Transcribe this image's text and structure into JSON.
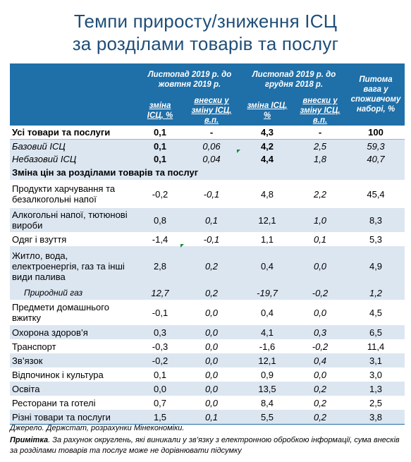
{
  "title": {
    "line1": "Темпи приросту/зниження ІСЦ",
    "line2": "за розділами товарів та послуг"
  },
  "header": {
    "group1": "Листопад 2019 р.  до жовтня 2019 р.",
    "group2": "Листопад 2019 р. до грудня 2018 р.",
    "weight": "Питома вага у споживчому наборі, %",
    "change1": "зміна ІСЦ, %",
    "contrib1": "внески у зміну ІСЦ, в.п.",
    "change2": "зміна ІСЦ, %",
    "contrib2": "внески у зміну ІСЦ, в.п."
  },
  "totals": [
    {
      "label": "Усі товари та послуги",
      "m_change": "0,1",
      "m_contrib": "-",
      "y_change": "4,3",
      "y_contrib": "-",
      "weight": "100"
    },
    {
      "label": "Базовий ІСЦ",
      "m_change": "0,1",
      "m_contrib": "0,06",
      "y_change": "4,2",
      "y_contrib": "2,5",
      "weight": "59,3"
    },
    {
      "label": "Небазовий ІСЦ",
      "m_change": "0,1",
      "m_contrib": "0,04",
      "y_change": "4,4",
      "y_contrib": "1,8",
      "weight": "40,7"
    }
  ],
  "section_title": "Зміна цін за розділами товарів та послуг",
  "rows": [
    {
      "label": "Продукти харчування та безалкогольні напої",
      "m_change": "-0,2",
      "m_contrib": "-0,1",
      "y_change": "4,8",
      "y_contrib": "2,2",
      "weight": "45,4"
    },
    {
      "label": "Алкогольні напої, тютюнові вироби",
      "m_change": "0,8",
      "m_contrib": "0,1",
      "y_change": "12,1",
      "y_contrib": "1,0",
      "weight": "8,3"
    },
    {
      "label": "Одяг і взуття",
      "m_change": "-1,4",
      "m_contrib": "-0,1",
      "y_change": "1,1",
      "y_contrib": "0,1",
      "weight": "5,3"
    },
    {
      "label": "Житло, вода, електроенергія, газ та інші види палива",
      "m_change": "2,8",
      "m_contrib": "0,2",
      "y_change": "0,4",
      "y_contrib": "0,0",
      "weight": "4,9"
    },
    {
      "label": "Природний газ",
      "m_change": "12,7",
      "m_contrib": "0,2",
      "y_change": "-19,7",
      "y_contrib": "-0,2",
      "weight": "1,2"
    },
    {
      "label": "Предмети домашнього вжитку",
      "m_change": "-0,1",
      "m_contrib": "0,0",
      "y_change": "0,4",
      "y_contrib": "0,0",
      "weight": "4,5"
    },
    {
      "label": "Охорона здоров’я",
      "m_change": "0,3",
      "m_contrib": "0,0",
      "y_change": "4,1",
      "y_contrib": "0,3",
      "weight": "6,5"
    },
    {
      "label": "Транспорт",
      "m_change": "-0,3",
      "m_contrib": "0,0",
      "y_change": "-1,6",
      "y_contrib": "-0,2",
      "weight": "11,4"
    },
    {
      "label": "Зв’язок",
      "m_change": "-0,2",
      "m_contrib": "0,0",
      "y_change": "12,1",
      "y_contrib": "0,4",
      "weight": "3,1"
    },
    {
      "label": "Відпочинок і культура",
      "m_change": "0,1",
      "m_contrib": "0,0",
      "y_change": "0,9",
      "y_contrib": "0,0",
      "weight": "3,0"
    },
    {
      "label": "Освіта",
      "m_change": "0,0",
      "m_contrib": "0,0",
      "y_change": "13,5",
      "y_contrib": "0,2",
      "weight": "1,3"
    },
    {
      "label": "Ресторани та готелі",
      "m_change": "0,7",
      "m_contrib": "0,0",
      "y_change": "8,4",
      "y_contrib": "0,2",
      "weight": "2,5"
    },
    {
      "label": "Різні товари та послуги",
      "m_change": "1,5",
      "m_contrib": "0,1",
      "y_change": "5,5",
      "y_contrib": "0,2",
      "weight": "3,8"
    }
  ],
  "notes": {
    "source": "Джерело. Держстат, розрахунки Мінекономіки.",
    "remark_label": "Примітка",
    "remark_text": ". За рахунок округлень, які виникали у зв’язку з електронною обробкою інформації, сума внесків за розділами товарів та послуг може не дорівнювати підсумку"
  },
  "colors": {
    "title": "#1f4e79",
    "header_bg": "#1f6fa8",
    "band": "#dce6f1",
    "marker": "#1a8a3a"
  }
}
